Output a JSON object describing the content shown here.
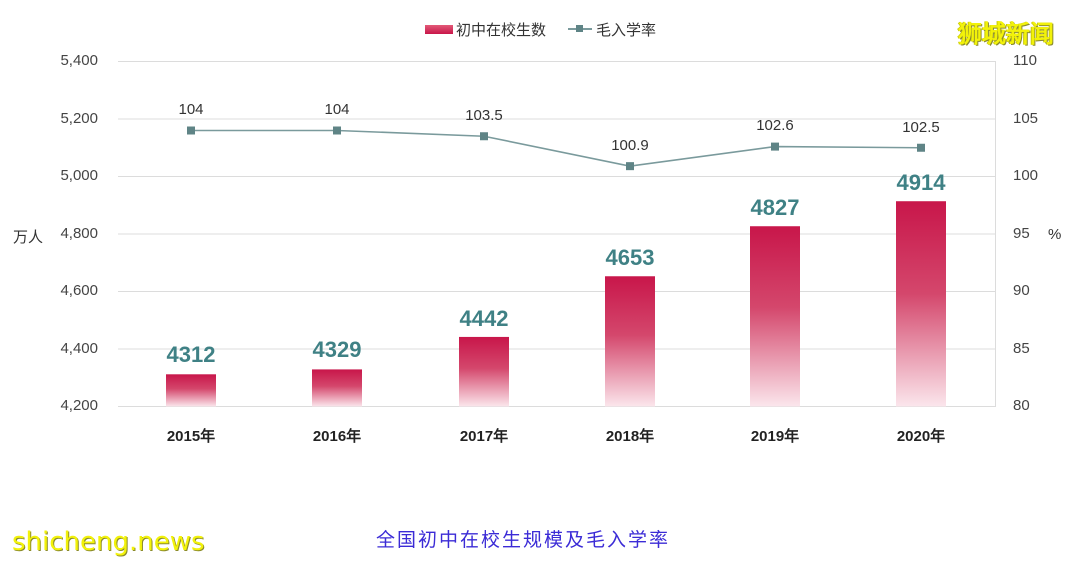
{
  "chart_data": {
    "type": "bar+line",
    "title": "全国初中在校生规模及毛入学率",
    "categories": [
      "2015年",
      "2016年",
      "2017年",
      "2018年",
      "2019年",
      "2020年"
    ],
    "series": [
      {
        "name": "初中在校生数",
        "type": "bar",
        "axis": "left",
        "unit": "万人",
        "values": [
          4312,
          4329,
          4442,
          4653,
          4827,
          4914
        ],
        "color": "#c8164a"
      },
      {
        "name": "毛入学率",
        "type": "line",
        "axis": "right",
        "unit": "%",
        "values": [
          104,
          104,
          103.5,
          100.9,
          102.6,
          102.5
        ],
        "color": "#5f8486"
      }
    ],
    "left_axis": {
      "label": "万人",
      "ylim": [
        4200,
        5400
      ],
      "ticks": [
        "5,400",
        "5,200",
        "5,000",
        "4,800",
        "4,600",
        "4,400",
        "4,200"
      ]
    },
    "right_axis": {
      "label": "%",
      "ylim": [
        80,
        110
      ],
      "ticks": [
        "110",
        "105",
        "100",
        "95",
        "90",
        "85",
        "80"
      ]
    },
    "grid": true,
    "legend_position": "top"
  },
  "legend": {
    "bar": "初中在校生数",
    "line": "毛入学率"
  },
  "watermark": {
    "cn": "狮城新闻",
    "en": "shicheng.news"
  },
  "caption": "全国初中在校生规模及毛入学率",
  "axes": {
    "left_unit": "万人",
    "right_unit": "%",
    "left_ticks": [
      "5,400",
      "5,200",
      "5,000",
      "4,800",
      "4,600",
      "4,400",
      "4,200"
    ],
    "right_ticks": [
      "110",
      "105",
      "100",
      "95",
      "90",
      "85",
      "80"
    ]
  },
  "bars": [
    {
      "year": "2015年",
      "value": "4312",
      "rate": "104"
    },
    {
      "year": "2016年",
      "value": "4329",
      "rate": "104"
    },
    {
      "year": "2017年",
      "value": "4442",
      "rate": "103.5"
    },
    {
      "year": "2018年",
      "value": "4653",
      "rate": "100.9"
    },
    {
      "year": "2019年",
      "value": "4827",
      "rate": "102.6"
    },
    {
      "year": "2020年",
      "value": "4914",
      "rate": "102.5"
    }
  ]
}
